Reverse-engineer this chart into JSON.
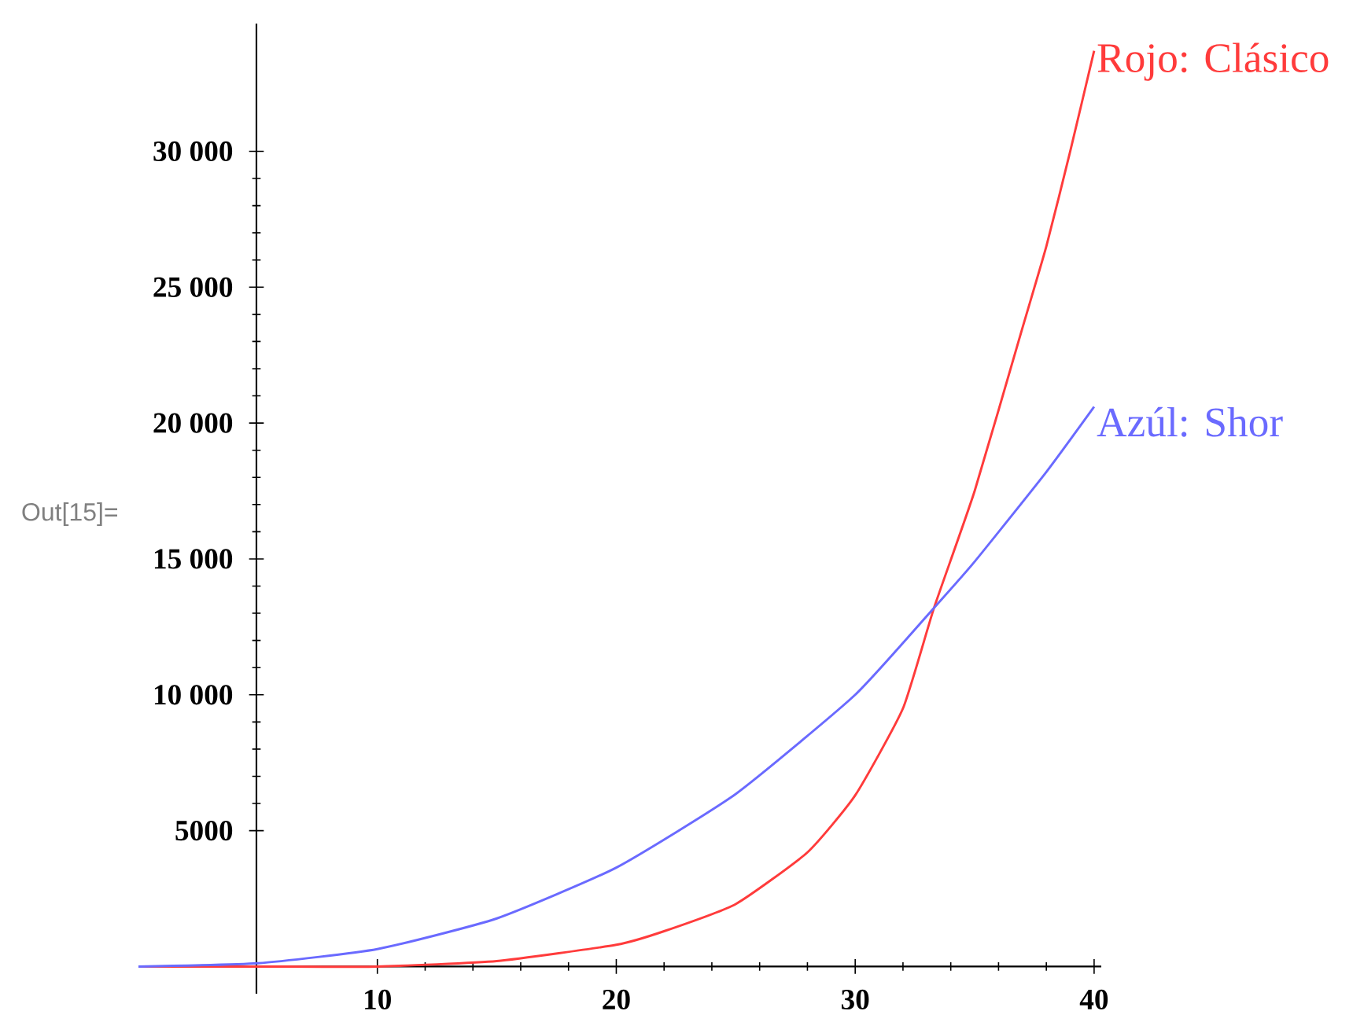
{
  "chart_data": {
    "type": "line",
    "annotations": [
      "Out[15]="
    ],
    "xlim": [
      0,
      40.3
    ],
    "ylim": [
      -1000,
      34700
    ],
    "xticks": [
      10,
      20,
      30,
      40
    ],
    "yticks": [
      5000,
      {
        "value": 10000,
        "label": "10 000"
      },
      {
        "value": 15000,
        "label": "15 000"
      },
      {
        "value": 20000,
        "label": "20 000"
      },
      {
        "value": 25000,
        "label": "25 000"
      },
      {
        "value": 30000,
        "label": "30 000"
      }
    ],
    "series": [
      {
        "name": "Rojo: Clásico",
        "color": "#ff3b3b",
        "x": [
          0,
          5,
          10,
          15,
          20,
          22,
          25,
          28,
          30,
          32,
          33.3,
          35,
          37,
          38,
          39,
          40
        ],
        "values": [
          0,
          0,
          0,
          200,
          800,
          1300,
          2300,
          4200,
          6300,
          9500,
          13200,
          17500,
          23500,
          26500,
          30000,
          33700
        ]
      },
      {
        "name": "Azúl: Shor",
        "color": "#6a6aff",
        "x": [
          0,
          5,
          10,
          15,
          20,
          25,
          30,
          33.3,
          35,
          38,
          40
        ],
        "values": [
          0,
          120,
          640,
          1770,
          3640,
          6350,
          10000,
          13200,
          14900,
          18200,
          20600
        ]
      }
    ]
  }
}
